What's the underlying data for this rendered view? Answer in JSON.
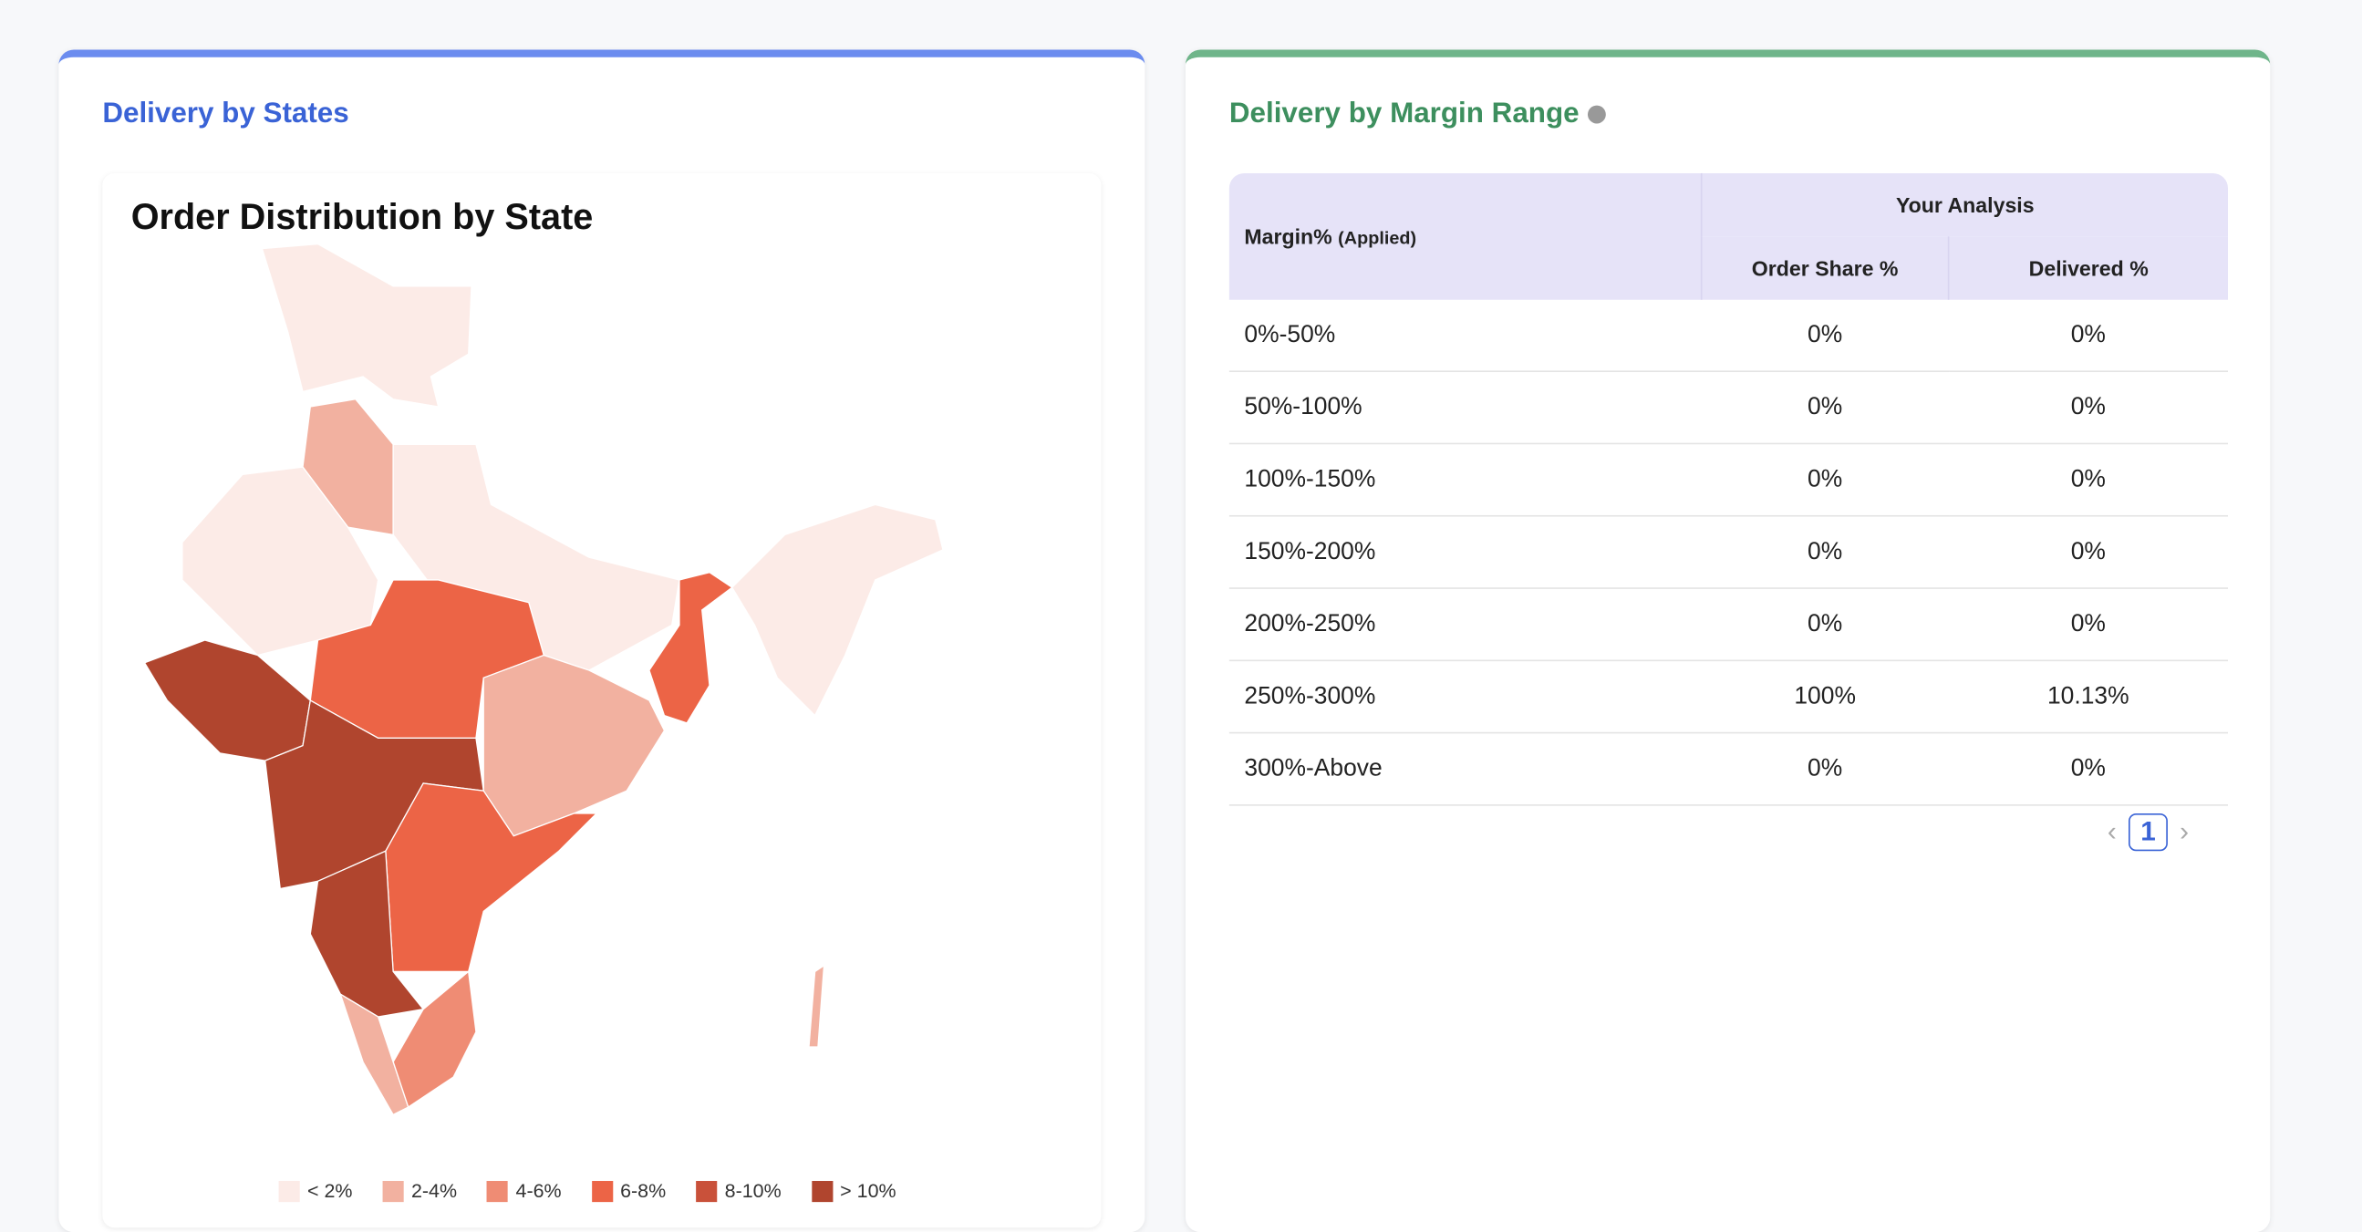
{
  "left_panel": {
    "title": "Delivery by States",
    "map_title": "Order Distribution by State",
    "legend": [
      "< 2%",
      "2-4%",
      "4-6%",
      "6-8%",
      "8-10%",
      "> 10%"
    ]
  },
  "right_panel": {
    "title": "Delivery by Margin Range",
    "table": {
      "header": {
        "first": "Margin%",
        "first_note": "(Applied)",
        "group": "Your Analysis",
        "columns": [
          "Order Share %",
          "Delivered %"
        ]
      },
      "rows": [
        [
          "0%-50%",
          "0%",
          "0%"
        ],
        [
          "50%-100%",
          "0%",
          "0%"
        ],
        [
          "100%-150%",
          "0%",
          "0%"
        ],
        [
          "150%-200%",
          "0%",
          "0%"
        ],
        [
          "200%-250%",
          "0%",
          "0%"
        ],
        [
          "250%-300%",
          "100%",
          "10.13%"
        ],
        [
          "300%-Above",
          "0%",
          "0%"
        ]
      ]
    },
    "pagination": {
      "current": "1"
    }
  }
}
